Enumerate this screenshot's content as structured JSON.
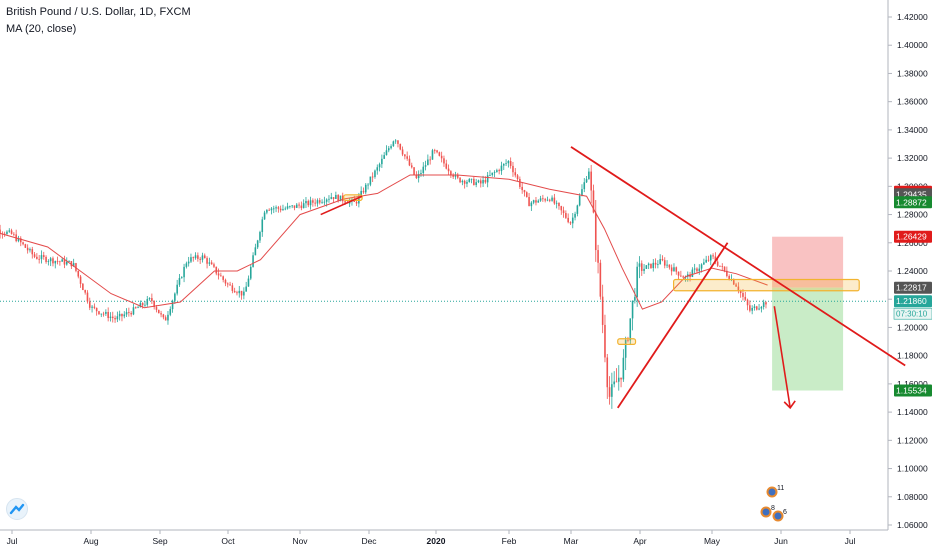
{
  "header": {
    "title": "British Pound / U.S. Dollar, 1D, FXCM",
    "indicator": "MA (20, close)"
  },
  "colors": {
    "up": "#26a69a",
    "down": "#ef5350",
    "ma": "#e34b4b",
    "trend": "#e01b1b",
    "zone": "#f2b330",
    "risk": "#f9c2c2",
    "reward": "#c9ecc7"
  },
  "chart_data": {
    "type": "candlestick",
    "title": "British Pound / U.S. Dollar, 1D, FXCM",
    "ylim": [
      1.06,
      1.42
    ],
    "y_ticks": [
      "1.42000",
      "1.40000",
      "1.38000",
      "1.36000",
      "1.34000",
      "1.32000",
      "1.30000",
      "1.28000",
      "1.26000",
      "1.24000",
      "1.22000",
      "1.20000",
      "1.18000",
      "1.16000",
      "1.14000",
      "1.12000",
      "1.10000",
      "1.08000",
      "1.06000"
    ],
    "x_ticks": [
      "Jul",
      "Aug",
      "Sep",
      "Oct",
      "Nov",
      "Dec",
      "2020",
      "Feb",
      "Mar",
      "Apr",
      "May",
      "Jun",
      "Jul"
    ],
    "price_path": [
      {
        "x": "2019-06-20",
        "y": 1.272
      },
      {
        "x": "2019-07-01",
        "y": 1.266
      },
      {
        "x": "2019-07-10",
        "y": 1.25
      },
      {
        "x": "2019-07-25",
        "y": 1.245
      },
      {
        "x": "2019-08-01",
        "y": 1.214
      },
      {
        "x": "2019-08-12",
        "y": 1.206
      },
      {
        "x": "2019-08-20",
        "y": 1.212
      },
      {
        "x": "2019-08-28",
        "y": 1.22
      },
      {
        "x": "2019-09-03",
        "y": 1.204
      },
      {
        "x": "2019-09-13",
        "y": 1.248
      },
      {
        "x": "2019-09-20",
        "y": 1.25
      },
      {
        "x": "2019-10-01",
        "y": 1.23
      },
      {
        "x": "2019-10-08",
        "y": 1.223
      },
      {
        "x": "2019-10-17",
        "y": 1.285
      },
      {
        "x": "2019-10-25",
        "y": 1.284
      },
      {
        "x": "2019-11-05",
        "y": 1.288
      },
      {
        "x": "2019-11-15",
        "y": 1.293
      },
      {
        "x": "2019-11-25",
        "y": 1.288
      },
      {
        "x": "2019-12-05",
        "y": 1.313
      },
      {
        "x": "2019-12-13",
        "y": 1.335
      },
      {
        "x": "2019-12-23",
        "y": 1.305
      },
      {
        "x": "2019-12-31",
        "y": 1.325
      },
      {
        "x": "2020-01-10",
        "y": 1.305
      },
      {
        "x": "2020-01-20",
        "y": 1.302
      },
      {
        "x": "2020-02-01",
        "y": 1.318
      },
      {
        "x": "2020-02-10",
        "y": 1.288
      },
      {
        "x": "2020-02-20",
        "y": 1.292
      },
      {
        "x": "2020-03-01",
        "y": 1.274
      },
      {
        "x": "2020-03-09",
        "y": 1.312
      },
      {
        "x": "2020-03-13",
        "y": 1.245
      },
      {
        "x": "2020-03-18",
        "y": 1.15
      },
      {
        "x": "2020-03-24",
        "y": 1.17
      },
      {
        "x": "2020-03-31",
        "y": 1.24
      },
      {
        "x": "2020-04-10",
        "y": 1.247
      },
      {
        "x": "2020-04-20",
        "y": 1.235
      },
      {
        "x": "2020-05-01",
        "y": 1.25
      },
      {
        "x": "2020-05-12",
        "y": 1.23
      },
      {
        "x": "2020-05-18",
        "y": 1.212
      },
      {
        "x": "2020-05-26",
        "y": 1.2186
      }
    ],
    "ma_path": [
      {
        "x": "2019-06-20",
        "y": 1.27
      },
      {
        "x": "2019-07-15",
        "y": 1.257
      },
      {
        "x": "2019-08-10",
        "y": 1.224
      },
      {
        "x": "2019-08-25",
        "y": 1.214
      },
      {
        "x": "2019-09-10",
        "y": 1.218
      },
      {
        "x": "2019-09-25",
        "y": 1.24
      },
      {
        "x": "2019-10-05",
        "y": 1.24
      },
      {
        "x": "2019-10-15",
        "y": 1.248
      },
      {
        "x": "2019-11-01",
        "y": 1.28
      },
      {
        "x": "2019-11-20",
        "y": 1.291
      },
      {
        "x": "2019-12-05",
        "y": 1.295
      },
      {
        "x": "2019-12-20",
        "y": 1.308
      },
      {
        "x": "2020-01-10",
        "y": 1.308
      },
      {
        "x": "2020-02-01",
        "y": 1.305
      },
      {
        "x": "2020-02-20",
        "y": 1.298
      },
      {
        "x": "2020-03-08",
        "y": 1.293
      },
      {
        "x": "2020-03-16",
        "y": 1.27
      },
      {
        "x": "2020-03-24",
        "y": 1.242
      },
      {
        "x": "2020-04-02",
        "y": 1.213
      },
      {
        "x": "2020-04-10",
        "y": 1.218
      },
      {
        "x": "2020-04-20",
        "y": 1.236
      },
      {
        "x": "2020-05-01",
        "y": 1.242
      },
      {
        "x": "2020-05-12",
        "y": 1.238
      },
      {
        "x": "2020-05-26",
        "y": 1.23
      }
    ],
    "price_labels": [
      {
        "value": 1.29616,
        "label": "1.29616",
        "bg": "#e01b1b"
      },
      {
        "value": 1.29435,
        "label": "1.29435",
        "bg": "#555555"
      },
      {
        "value": 1.28872,
        "label": "1.28872",
        "bg": "#178a30"
      },
      {
        "value": 1.26429,
        "label": "1.26429",
        "bg": "#e01b1b"
      },
      {
        "value": 1.22817,
        "label": "1.22817",
        "bg": "#555555"
      },
      {
        "value": 1.2186,
        "label": "1.21860",
        "bg": "#26a69a"
      },
      {
        "value": 1.15534,
        "label": "1.15534",
        "bg": "#178a30"
      }
    ],
    "countdown": "07:30:10",
    "last_price": 1.2186,
    "annotations": {
      "downtrend_line": [
        {
          "x": "2020-03-01",
          "y": 1.328
        },
        {
          "x": "2020-07-25",
          "y": 1.173
        }
      ],
      "rising_wedge_line": [
        {
          "x": "2020-03-22",
          "y": 1.143
        },
        {
          "x": "2020-05-08",
          "y": 1.26
        }
      ],
      "small_trend_line": [
        {
          "x": "2019-11-10",
          "y": 1.28
        },
        {
          "x": "2019-11-28",
          "y": 1.293
        }
      ],
      "risk_box": {
        "x0": "2020-05-28",
        "x1": "2020-06-28",
        "y0": 1.2282,
        "y1": 1.2643
      },
      "reward_box": {
        "x0": "2020-05-28",
        "x1": "2020-06-28",
        "y0": 1.1553,
        "y1": 1.2282
      },
      "zone_box": {
        "x0": "2020-04-15",
        "x1": "2020-07-05",
        "y0": 1.226,
        "y1": 1.234
      },
      "small_zone_top": {
        "x0": "2019-11-20",
        "x1": "2019-11-28",
        "y0": 1.29,
        "y1": 1.294
      },
      "small_zone_mar": {
        "x0": "2020-03-22",
        "x1": "2020-03-30",
        "y0": 1.188,
        "y1": 1.192
      },
      "forecast_arrow": [
        {
          "x": "2020-05-29",
          "y": 1.215
        },
        {
          "x": "2020-06-05",
          "y": 1.143
        }
      ],
      "event_badges": [
        {
          "label": "11"
        },
        {
          "label": "8"
        },
        {
          "label": "6"
        }
      ]
    }
  }
}
